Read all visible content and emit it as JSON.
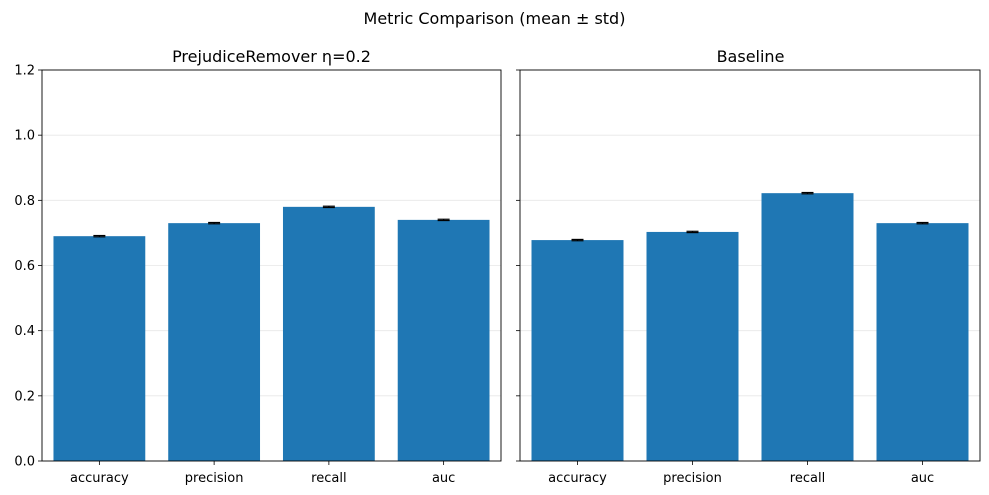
{
  "figure": {
    "suptitle": "Metric Comparison (mean ± std)"
  },
  "chart_data": [
    {
      "type": "bar",
      "title": "PrejudiceRemover η=0.2",
      "xlabel": "",
      "ylabel": "",
      "categories": [
        "accuracy",
        "precision",
        "recall",
        "auc"
      ],
      "values": [
        0.69,
        0.73,
        0.78,
        0.74
      ],
      "errors": [
        0.002,
        0.002,
        0.002,
        0.002
      ],
      "ylim": [
        0,
        1.2
      ],
      "yticks": [
        "0.0",
        "0.2",
        "0.4",
        "0.6",
        "0.8",
        "1.0",
        "1.2"
      ],
      "grid": "y",
      "bar_color": "#1f77b4",
      "error_color": "#000000"
    },
    {
      "type": "bar",
      "title": "Baseline",
      "xlabel": "",
      "ylabel": "",
      "categories": [
        "accuracy",
        "precision",
        "recall",
        "auc"
      ],
      "values": [
        0.678,
        0.703,
        0.822,
        0.73
      ],
      "errors": [
        0.002,
        0.002,
        0.002,
        0.002
      ],
      "ylim": [
        0,
        1.2
      ],
      "yticks": [
        "0.0",
        "0.2",
        "0.4",
        "0.6",
        "0.8",
        "1.0",
        "1.2"
      ],
      "grid": "y",
      "bar_color": "#1f77b4",
      "error_color": "#000000"
    }
  ]
}
